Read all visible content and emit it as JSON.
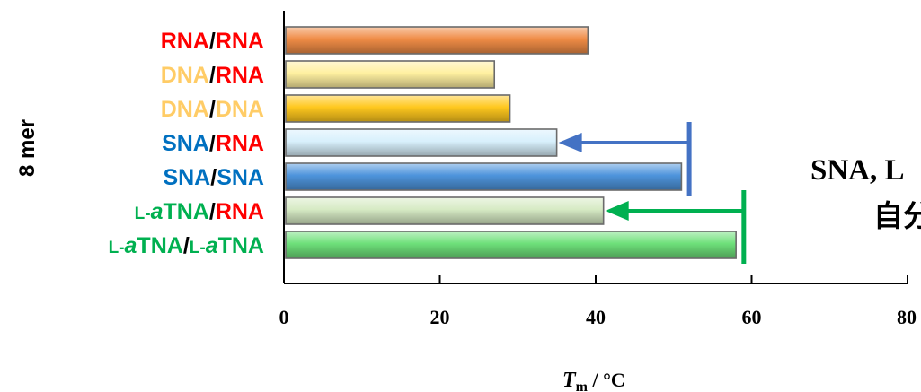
{
  "chart_data": {
    "type": "bar",
    "orientation": "horizontal",
    "group_label": "8 mer",
    "xlabel": {
      "main": "T",
      "sub": "m",
      "rest": " / °C"
    },
    "xlim": [
      0,
      80
    ],
    "xticks": [
      "0",
      "20",
      "40",
      "60",
      "80"
    ],
    "grid": false,
    "categories": [
      {
        "parts": [
          {
            "text": "RNA",
            "color": "#ff0000"
          },
          {
            "text": "/",
            "color": "#000000"
          },
          {
            "text": "RNA",
            "color": "#ff0000"
          }
        ]
      },
      {
        "parts": [
          {
            "text": "DNA",
            "color": "#ffcc66"
          },
          {
            "text": "/",
            "color": "#000000"
          },
          {
            "text": "RNA",
            "color": "#ff0000"
          }
        ]
      },
      {
        "parts": [
          {
            "text": "DNA",
            "color": "#ffcc66"
          },
          {
            "text": "/",
            "color": "#000000"
          },
          {
            "text": "DNA",
            "color": "#ffcc66"
          }
        ]
      },
      {
        "parts": [
          {
            "text": "SNA",
            "color": "#0070c0"
          },
          {
            "text": "/",
            "color": "#000000"
          },
          {
            "text": "RNA",
            "color": "#ff0000"
          }
        ]
      },
      {
        "parts": [
          {
            "text": "SNA",
            "color": "#0070c0"
          },
          {
            "text": "/",
            "color": "#000000"
          },
          {
            "text": "SNA",
            "color": "#0070c0"
          }
        ]
      },
      {
        "parts": [
          {
            "text": "L-",
            "color": "#00b050",
            "smallcaps": true
          },
          {
            "text": "a",
            "color": "#00b050",
            "italic": true
          },
          {
            "text": "TNA",
            "color": "#00b050"
          },
          {
            "text": "/",
            "color": "#000000"
          },
          {
            "text": "RNA",
            "color": "#ff0000"
          }
        ]
      },
      {
        "parts": [
          {
            "text": "L-",
            "color": "#00b050",
            "smallcaps": true
          },
          {
            "text": "a",
            "color": "#00b050",
            "italic": true
          },
          {
            "text": "TNA",
            "color": "#00b050"
          },
          {
            "text": "/",
            "color": "#000000"
          },
          {
            "text": "L-",
            "color": "#00b050",
            "smallcaps": true
          },
          {
            "text": "a",
            "color": "#00b050",
            "italic": true
          },
          {
            "text": "TNA",
            "color": "#00b050"
          }
        ]
      }
    ],
    "values": [
      39,
      27,
      29,
      35,
      51,
      41,
      58
    ],
    "bar_colors": [
      "#f08c46",
      "#fff0a0",
      "#ffc81e",
      "#d8f0fc",
      "#4e94dc",
      "#d6eac4",
      "#6ee07a"
    ],
    "annotations": [
      {
        "type": "arrow",
        "from_value": 52,
        "to_value": 35,
        "bracket_from_row": 3,
        "bracket_to_row": 4,
        "color": "#4472c4"
      },
      {
        "type": "arrow",
        "from_value": 59,
        "to_value": 41,
        "bracket_from_row": 5,
        "bracket_to_row": 6,
        "color": "#00b050"
      }
    ],
    "side_text": {
      "line1": "SNA, L",
      "line2": "自分"
    }
  }
}
